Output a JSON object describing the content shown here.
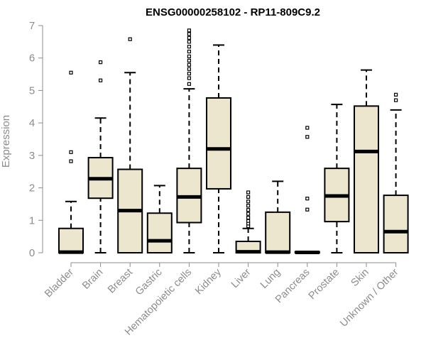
{
  "chart_data": {
    "type": "box",
    "title": "ENSG00000258102 - RP11-809C9.2",
    "ylabel": "Expression",
    "xlabel": "",
    "ylim": [
      0,
      7
    ],
    "yticks": [
      0,
      1,
      2,
      3,
      4,
      5,
      6,
      7
    ],
    "grid": false,
    "box_fill": "#ede6cf",
    "categories": [
      "Bladder",
      "Brain",
      "Breast",
      "Gastric",
      "Hematopoietic cells",
      "Kidney",
      "Liver",
      "Lung",
      "Pancreas",
      "Prostate",
      "Skin",
      "Unknown / Other"
    ],
    "boxes": [
      {
        "min": 0,
        "q1": 0,
        "median": 0.02,
        "q3": 0.75,
        "max": 1.58,
        "outliers": [
          2.82,
          3.1,
          5.55
        ]
      },
      {
        "min": 0,
        "q1": 1.68,
        "median": 2.28,
        "q3": 2.93,
        "max": 4.15,
        "outliers": [
          5.31,
          5.87
        ]
      },
      {
        "min": 0,
        "q1": 0,
        "median": 1.3,
        "q3": 2.57,
        "max": 5.55,
        "outliers": [
          6.58
        ]
      },
      {
        "min": 0,
        "q1": 0,
        "median": 0.37,
        "q3": 1.22,
        "max": 2.07,
        "outliers": []
      },
      {
        "min": 0,
        "q1": 0.93,
        "median": 1.72,
        "q3": 2.6,
        "max": 5.05,
        "outliers": [
          5.2,
          5.38,
          5.52,
          5.66,
          5.79,
          5.92,
          6.05,
          6.2,
          6.35,
          6.5,
          6.62,
          6.74,
          6.85
        ]
      },
      {
        "min": 0,
        "q1": 1.97,
        "median": 3.2,
        "q3": 4.77,
        "max": 6.4,
        "outliers": []
      },
      {
        "min": 0,
        "q1": 0,
        "median": 0.03,
        "q3": 0.35,
        "max": 0.75,
        "outliers": [
          0.82,
          0.9,
          0.98,
          1.08,
          1.2,
          1.32,
          1.45,
          1.58,
          1.72,
          1.86
        ]
      },
      {
        "min": 0,
        "q1": 0,
        "median": 0.02,
        "q3": 1.25,
        "max": 2.2,
        "outliers": []
      },
      {
        "min": 0,
        "q1": 0,
        "median": 0.01,
        "q3": 0.03,
        "max": 0.03,
        "outliers": [
          1.33,
          1.67,
          3.57,
          3.85
        ]
      },
      {
        "min": 0,
        "q1": 0.96,
        "median": 1.75,
        "q3": 2.6,
        "max": 4.57,
        "outliers": []
      },
      {
        "min": 0,
        "q1": 0,
        "median": 3.12,
        "q3": 4.52,
        "max": 5.63,
        "outliers": []
      },
      {
        "min": 0,
        "q1": 0,
        "median": 0.65,
        "q3": 1.77,
        "max": 4.4,
        "outliers": [
          4.7,
          4.87
        ]
      }
    ]
  }
}
